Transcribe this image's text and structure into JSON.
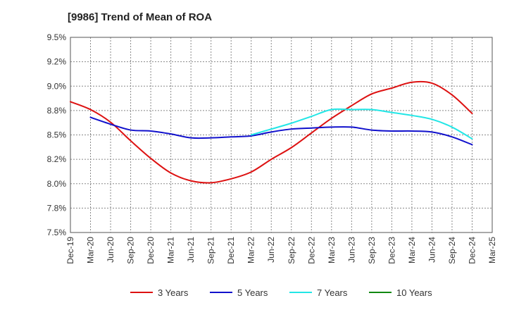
{
  "chart_data": {
    "type": "line",
    "title": "[9986]  Trend of Mean of ROA",
    "xlabel": "",
    "ylabel": "",
    "x": [
      "Dec-19",
      "Mar-20",
      "Jun-20",
      "Sep-20",
      "Dec-20",
      "Mar-21",
      "Jun-21",
      "Sep-21",
      "Dec-21",
      "Mar-22",
      "Jun-22",
      "Sep-22",
      "Dec-22",
      "Mar-23",
      "Jun-23",
      "Sep-23",
      "Dec-23",
      "Mar-24",
      "Jun-24",
      "Sep-24",
      "Dec-24",
      "Mar-25"
    ],
    "y_ticks": [
      7.5,
      7.75,
      8.0,
      8.25,
      8.5,
      8.75,
      9.0,
      9.25,
      9.5
    ],
    "y_tick_labels": [
      "7.5%",
      "7.8%",
      "8.0%",
      "8.2%",
      "8.5%",
      "8.8%",
      "9.0%",
      "9.2%",
      "9.5%"
    ],
    "ylim": [
      7.5,
      9.5
    ],
    "grid": true,
    "legend_position": "bottom",
    "series": [
      {
        "name": "3 Years",
        "color": "#dd1111",
        "values": [
          8.84,
          8.76,
          8.63,
          8.44,
          8.26,
          8.11,
          8.03,
          8.01,
          8.05,
          8.12,
          8.25,
          8.37,
          8.52,
          8.67,
          8.8,
          8.92,
          8.98,
          9.04,
          9.03,
          8.91,
          8.72,
          null
        ]
      },
      {
        "name": "5 Years",
        "color": "#1111cc",
        "values": [
          null,
          8.68,
          8.61,
          8.55,
          8.54,
          8.51,
          8.47,
          8.47,
          8.48,
          8.49,
          8.53,
          8.56,
          8.57,
          8.58,
          8.58,
          8.55,
          8.54,
          8.54,
          8.53,
          8.48,
          8.4,
          null
        ]
      },
      {
        "name": "7 Years",
        "color": "#22e6e6",
        "values": [
          null,
          null,
          null,
          null,
          null,
          null,
          null,
          null,
          null,
          8.5,
          8.56,
          8.62,
          8.69,
          8.76,
          8.76,
          8.76,
          8.73,
          8.7,
          8.66,
          8.58,
          8.46,
          null
        ]
      },
      {
        "name": "10 Years",
        "color": "#118811",
        "values": [
          null,
          null,
          null,
          null,
          null,
          null,
          null,
          null,
          null,
          null,
          null,
          null,
          null,
          null,
          null,
          null,
          null,
          null,
          null,
          null,
          null,
          null
        ]
      }
    ]
  }
}
